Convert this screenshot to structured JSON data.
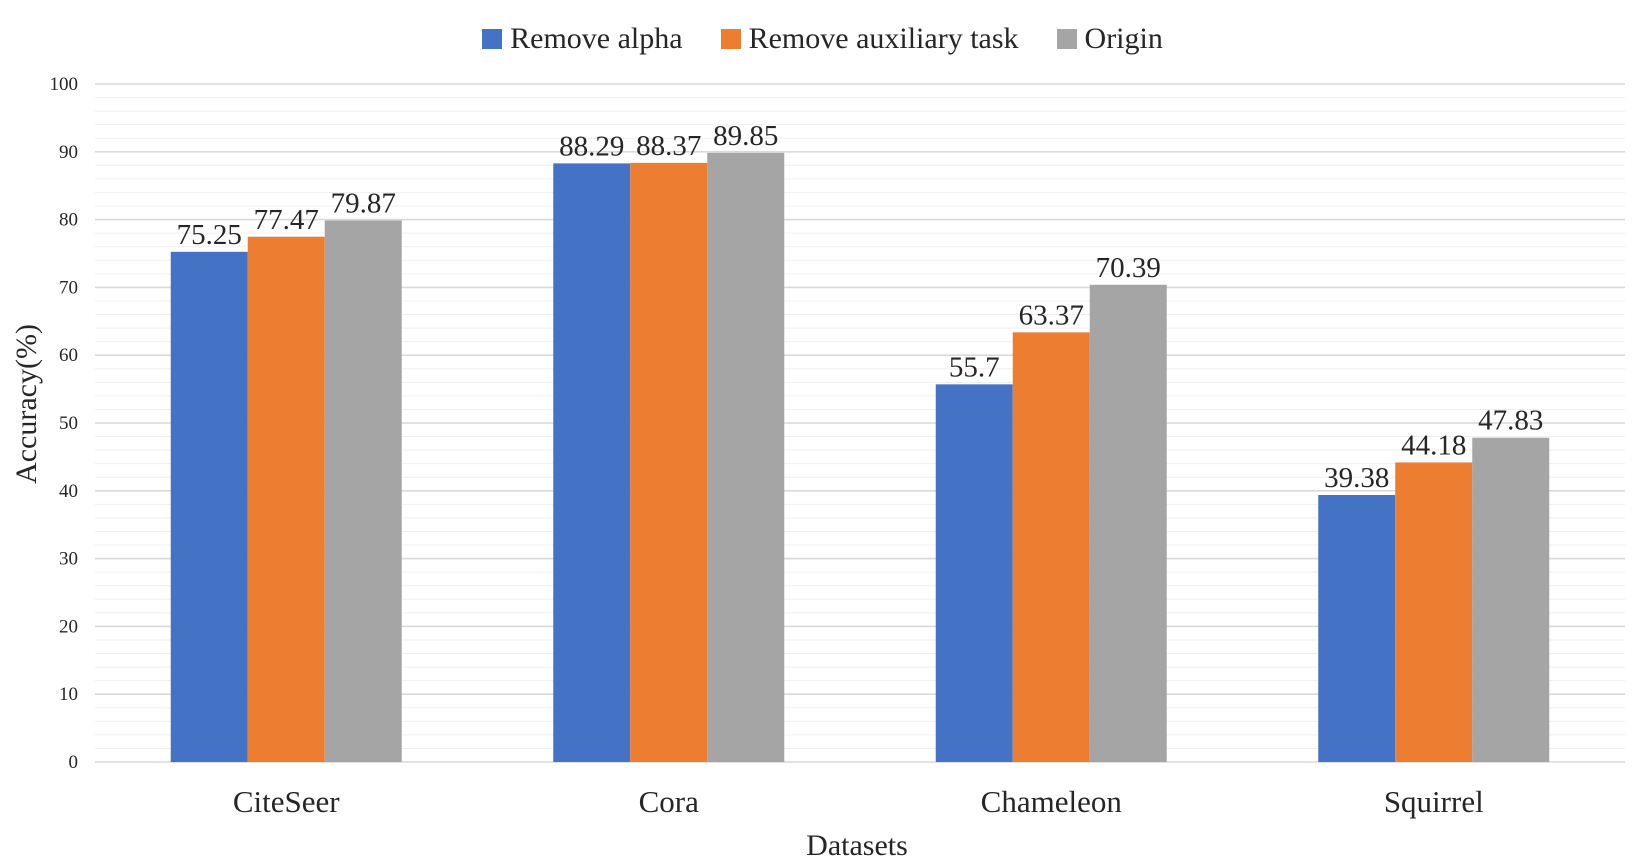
{
  "chart_data": {
    "type": "bar",
    "title": "",
    "xlabel": "Datasets",
    "ylabel": "Accuracy(%)",
    "ylim": [
      0,
      100
    ],
    "yticks": [
      "0",
      "10",
      "20",
      "30",
      "40",
      "50",
      "60",
      "70",
      "80",
      "90",
      "100"
    ],
    "grid": true,
    "legend_position": "top",
    "categories": [
      "CiteSeer",
      "Cora",
      "Chameleon",
      "Squirrel"
    ],
    "series": [
      {
        "name": "Remove alpha",
        "color": "#4472C4",
        "values": [
          75.25,
          88.29,
          55.7,
          39.38
        ],
        "labels": [
          "75.25",
          "88.29",
          "55.7",
          "39.38"
        ]
      },
      {
        "name": "Remove auxiliary task",
        "color": "#ED7D31",
        "values": [
          77.47,
          88.37,
          63.37,
          44.18
        ],
        "labels": [
          "77.47",
          "88.37",
          "63.37",
          "44.18"
        ]
      },
      {
        "name": "Origin",
        "color": "#A5A5A5",
        "values": [
          79.87,
          89.85,
          70.39,
          47.83
        ],
        "labels": [
          "79.87",
          "89.85",
          "70.39",
          "47.83"
        ]
      }
    ]
  }
}
